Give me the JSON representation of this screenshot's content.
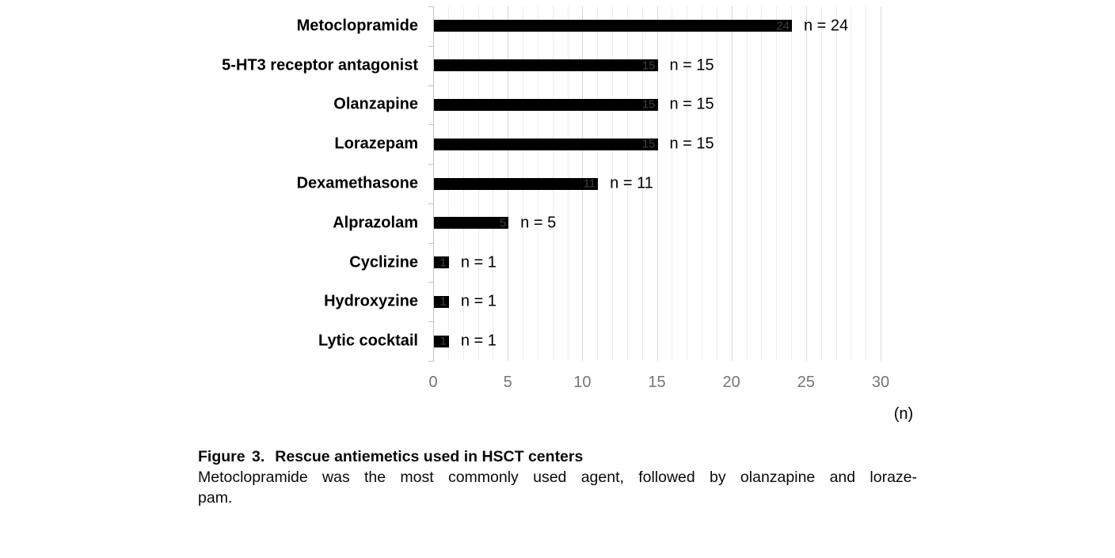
{
  "figure": {
    "caption_label": "Figure 3.",
    "caption_title": "Rescue antiemetics used in HSCT centers",
    "caption_body_lines": [
      "Metoclopramide was the most commonly used agent, followed by olanzapine and loraze-",
      "pam."
    ]
  },
  "chart_data": {
    "type": "bar",
    "orientation": "horizontal",
    "title": "Rescue antiemetics used in HSCT centers",
    "categories": [
      "Metoclopramide",
      "5-HT3 receptor antagonist",
      "Olanzapine",
      "Lorazepam",
      "Dexamethasone",
      "Alprazolam",
      "Cyclizine",
      "Hydroxyzine",
      "Lytic cocktail"
    ],
    "values": [
      24,
      15,
      15,
      15,
      11,
      5,
      1,
      1,
      1
    ],
    "inside_value_labels": [
      "24",
      "15",
      "15",
      "15",
      "11",
      "5",
      "1",
      "1",
      "1"
    ],
    "bar_annotations": [
      "n = 24",
      "n = 15",
      "n = 15",
      "n = 15",
      "n = 11",
      "n = 5",
      "n = 1",
      "n = 1",
      "n = 1"
    ],
    "xlabel": "(n)",
    "ylabel": "",
    "xlim": [
      0,
      30
    ],
    "x_ticks": [
      0,
      5,
      10,
      15,
      20,
      25,
      30
    ],
    "grid": true,
    "grid_minor_step": 1,
    "grid_major_step": 5,
    "legend": "none",
    "colors": {
      "bar": "#000000",
      "inside_label": "#3f3f3f",
      "grid_minor": "#ececec",
      "grid_major": "#d9d9d9",
      "axis": "#c2c2c2",
      "tick_label": "#757575",
      "text": "#000000"
    }
  }
}
